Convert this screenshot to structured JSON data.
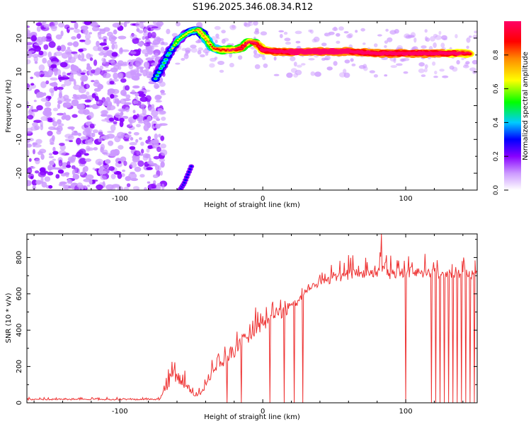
{
  "title": "S196.2025.346.08.34.R12",
  "chart_data": [
    {
      "type": "heatmap",
      "title": "S196.2025.346.08.34.R12",
      "xlabel": "Height of straight line (km)",
      "ylabel": "Frequency (Hz)",
      "xlim": [
        -165,
        150
      ],
      "ylim": [
        -25,
        25
      ],
      "xticks": [
        -100,
        0,
        100
      ],
      "yticks": [
        -20,
        -10,
        0,
        10,
        20
      ],
      "grid": false,
      "colorbar": {
        "label": "Normalized spectral amplitude",
        "range": [
          0,
          1
        ],
        "ticks": [
          "0.0",
          "0.2",
          "0.4",
          "0.6",
          "0.8"
        ],
        "colors": [
          "#ffffff",
          "#cc99ff",
          "#8800ff",
          "#0000ff",
          "#00ccff",
          "#00ff00",
          "#ffff00",
          "#ff8800",
          "#ff0000",
          "#ff0066"
        ]
      },
      "ridge": {
        "x": [
          -75,
          -70,
          -65,
          -60,
          -55,
          -50,
          -45,
          -40,
          -35,
          -30,
          -25,
          -20,
          -15,
          -10,
          -5,
          0,
          10,
          20,
          40,
          60,
          80,
          100,
          120,
          145
        ],
        "freq": [
          8,
          12,
          16,
          19,
          21,
          22,
          22.5,
          20,
          17,
          16.5,
          16.5,
          16.5,
          17,
          19,
          18.5,
          16.5,
          16,
          16,
          16,
          16,
          15.5,
          15.5,
          15.5,
          15.5
        ],
        "amplitude": [
          0.3,
          0.35,
          0.35,
          0.4,
          0.4,
          0.45,
          0.5,
          0.55,
          0.6,
          0.65,
          0.7,
          0.7,
          0.75,
          0.7,
          0.75,
          0.85,
          0.9,
          0.95,
          0.95,
          0.95,
          0.9,
          0.9,
          0.9,
          0.8
        ]
      },
      "mirror_ridge": {
        "x": [
          -58,
          -55,
          -52,
          -50
        ],
        "freq": [
          -25,
          -23,
          -20,
          -18
        ]
      },
      "noise_region_x": [
        -165,
        -75
      ]
    },
    {
      "type": "line",
      "xlabel": "Height of straight line (km)",
      "ylabel": "SNR (10 * v/v)",
      "xlim": [
        -165,
        150
      ],
      "ylim": [
        0,
        930
      ],
      "xticks": [
        -100,
        0,
        100
      ],
      "yticks": [
        0,
        200,
        400,
        600,
        800
      ],
      "grid": false,
      "color": "#ee3333",
      "envelope": {
        "x": [
          -165,
          -72,
          -68,
          -62,
          -57,
          -52,
          -47,
          -40,
          -35,
          -30,
          -25,
          -20,
          -15,
          -10,
          -5,
          0,
          5,
          10,
          15,
          20,
          25,
          30,
          40,
          50,
          60,
          70,
          80,
          90,
          100,
          110,
          120,
          130,
          140,
          150
        ],
        "base": [
          15,
          15,
          60,
          120,
          90,
          60,
          30,
          60,
          150,
          180,
          210,
          250,
          300,
          330,
          360,
          380,
          420,
          450,
          470,
          500,
          540,
          600,
          640,
          660,
          670,
          680,
          680,
          680,
          690,
          690,
          680,
          680,
          680,
          680
        ],
        "amp": [
          15,
          15,
          100,
          150,
          130,
          90,
          60,
          80,
          100,
          120,
          140,
          150,
          160,
          170,
          170,
          170,
          160,
          150,
          130,
          120,
          100,
          80,
          120,
          140,
          150,
          140,
          150,
          150,
          140,
          140,
          150,
          140,
          130,
          100
        ]
      },
      "dropouts_x": [
        -25,
        -15,
        5,
        15,
        22,
        28,
        100,
        118,
        121,
        124,
        127,
        130,
        133,
        136,
        139,
        142,
        145,
        148
      ],
      "peak": {
        "x": 83,
        "y": 930
      }
    }
  ]
}
